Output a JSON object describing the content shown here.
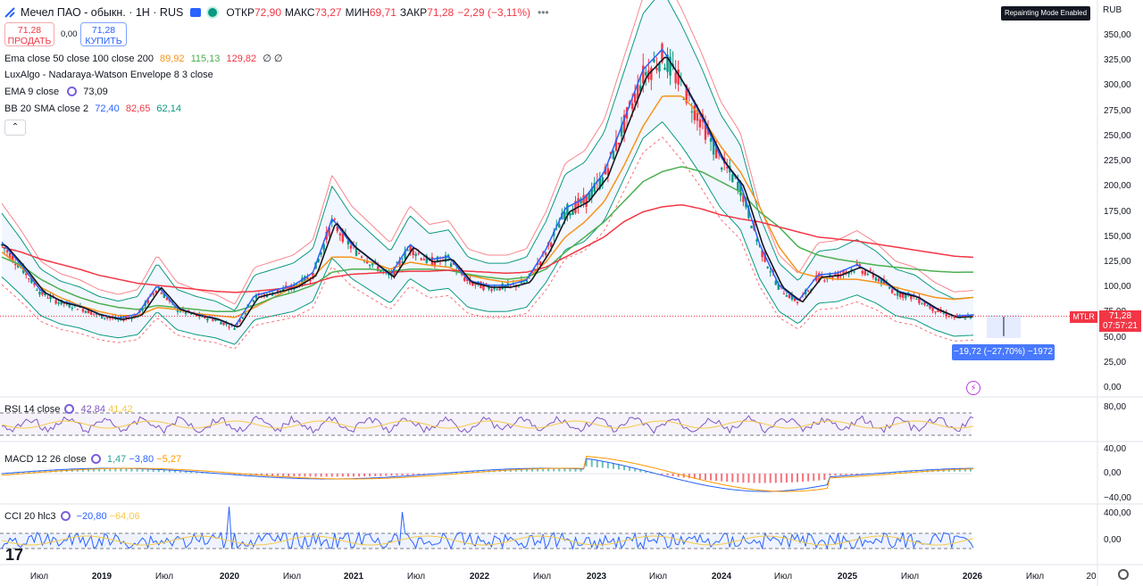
{
  "header": {
    "symbol": "Мечел ПАО - обыкн. · 1H · RUS",
    "open_label": "ОТКР",
    "open": "72,90",
    "high_label": "МАКС",
    "high": "73,27",
    "low_label": "МИН",
    "low": "69,71",
    "close_label": "ЗАКР",
    "close": "71,28",
    "change": "−2,29 (−3,11%)"
  },
  "trade": {
    "sell_price": "71,28",
    "sell_label": "ПРОДАТЬ",
    "spread": "0,00",
    "buy_price": "71,28",
    "buy_label": "КУПИТЬ"
  },
  "indicators": {
    "ema": {
      "name": "Ema close 50 close 100 close 200",
      "v1": "89,92",
      "v2": "115,13",
      "v3": "129,82",
      "v4": "∅ ∅",
      "c1": "#f7931a",
      "c2": "#4caf50",
      "c3": "#f23645"
    },
    "lux": {
      "name": "LuxAlgo - Nadaraya-Watson Envelope 8 3 close"
    },
    "ema9": {
      "name": "EMA 9 close",
      "v": "73,09"
    },
    "bb": {
      "name": "BB 20 SMA close 2",
      "v1": "72,40",
      "v2": "82,65",
      "v3": "62,14"
    }
  },
  "top_right": {
    "badge": "Repainting Mode Enabled",
    "currency": "RUB"
  },
  "price_axis": [
    "350,00",
    "325,00",
    "300,00",
    "275,00",
    "250,00",
    "225,00",
    "200,00",
    "175,00",
    "150,00",
    "125,00",
    "100,00",
    "75,00",
    "50,00",
    "25,00",
    "0,00"
  ],
  "last_price": {
    "ticker": "MTLR",
    "price": "71,28",
    "countdown": "07:57:21"
  },
  "measure": {
    "label": "−19,72 (−27,70%) −1972"
  },
  "rsi": {
    "name": "RSI 14 close",
    "v1": "42,84",
    "v2": "41,42",
    "axis": "80,00"
  },
  "macd": {
    "name": "MACD 12 26 close",
    "v1": "1,47",
    "v2": "−3,80",
    "v3": "−5,27",
    "axis": [
      "40,00",
      "0,00",
      "−40,00"
    ]
  },
  "cci": {
    "name": "CCI 20 hlc3",
    "v1": "−20,80",
    "v2": "−64,06",
    "axis": [
      "400,00",
      "0,00"
    ]
  },
  "time_axis": [
    {
      "t": "Июл",
      "year": false
    },
    {
      "t": "2019",
      "year": true
    },
    {
      "t": "Июл",
      "year": false
    },
    {
      "t": "2020",
      "year": true
    },
    {
      "t": "Июл",
      "year": false
    },
    {
      "t": "2021",
      "year": true
    },
    {
      "t": "Июл",
      "year": false
    },
    {
      "t": "2022",
      "year": true
    },
    {
      "t": "Июл",
      "year": false
    },
    {
      "t": "2023",
      "year": true
    },
    {
      "t": "Июл",
      "year": false
    },
    {
      "t": "2024",
      "year": true
    },
    {
      "t": "Июл",
      "year": false
    },
    {
      "t": "2025",
      "year": true
    },
    {
      "t": "Июл",
      "year": false
    },
    {
      "t": "2026",
      "year": true
    },
    {
      "t": "Июл",
      "year": false
    },
    {
      "t": "20",
      "year": false
    }
  ],
  "colors": {
    "up": "#089981",
    "down": "#f23645",
    "ema50": "#f7931a",
    "ema100": "#4caf50",
    "ema200": "#f23645",
    "ema9": "#131722",
    "bb_basis": "#2962ff",
    "bb_band": "#089981",
    "nw_upper": "#f23645",
    "nw_lower": "#f23645",
    "rsi": "#7e57c2",
    "macd": "#2962ff",
    "signal": "#ff9800",
    "cci": "#2962ff"
  },
  "chart_data": {
    "type": "line",
    "x": [
      "2018-05",
      "2018-07",
      "2018-10",
      "2019-01",
      "2019-04",
      "2019-07",
      "2019-10",
      "2020-01",
      "2020-03",
      "2020-04",
      "2020-07",
      "2020-10",
      "2021-01",
      "2021-04",
      "2021-06",
      "2021-07",
      "2021-09",
      "2021-10",
      "2021-12",
      "2022-01",
      "2022-03",
      "2022-04",
      "2022-06",
      "2022-07",
      "2022-09",
      "2022-10",
      "2022-12",
      "2023-01",
      "2023-03",
      "2023-04",
      "2023-06",
      "2023-07",
      "2023-09",
      "2023-10",
      "2023-12",
      "2024-01",
      "2024-03",
      "2024-04",
      "2024-06",
      "2024-07",
      "2024-09",
      "2024-10",
      "2024-12",
      "2025-01",
      "2025-03",
      "2025-04",
      "2025-06",
      "2025-07",
      "2025-09",
      "2025-10",
      "2025-12"
    ],
    "series": [
      {
        "name": "Мечел ПАО - обыкн.",
        "values": [
          142,
          120,
          95,
          85,
          80,
          72,
          68,
          72,
          100,
          78,
          72,
          68,
          60,
          90,
          95,
          100,
          112,
          165,
          140,
          125,
          110,
          140,
          125,
          128,
          105,
          100,
          100,
          105,
          135,
          175,
          185,
          210,
          260,
          310,
          330,
          300,
          265,
          225,
          200,
          140,
          100,
          85,
          110,
          112,
          120,
          110,
          95,
          90,
          78,
          70,
          71.28
        ]
      },
      {
        "name": "Ema close 50",
        "values": [
          135,
          120,
          100,
          90,
          82,
          76,
          72,
          72,
          80,
          78,
          74,
          72,
          70,
          80,
          90,
          100,
          110,
          130,
          130,
          125,
          118,
          125,
          122,
          120,
          112,
          108,
          105,
          108,
          125,
          150,
          165,
          185,
          220,
          260,
          290,
          290,
          270,
          240,
          215,
          180,
          140,
          115,
          110,
          108,
          108,
          105,
          100,
          95,
          90,
          88,
          89.92
        ]
      },
      {
        "name": "Ema close 100",
        "values": [
          130,
          122,
          108,
          98,
          90,
          84,
          80,
          78,
          82,
          80,
          78,
          76,
          76,
          82,
          90,
          95,
          102,
          115,
          118,
          118,
          116,
          118,
          118,
          117,
          113,
          110,
          108,
          110,
          118,
          135,
          150,
          165,
          185,
          205,
          215,
          220,
          215,
          205,
          195,
          175,
          160,
          140,
          132,
          128,
          125,
          122,
          120,
          118,
          116,
          115,
          115.13
        ]
      },
      {
        "name": "Ema close 200",
        "values": [
          140,
          135,
          128,
          123,
          118,
          112,
          108,
          104,
          102,
          100,
          98,
          96,
          95,
          96,
          98,
          100,
          104,
          110,
          113,
          114,
          115,
          116,
          116,
          117,
          116,
          115,
          114,
          115,
          120,
          130,
          140,
          150,
          165,
          175,
          180,
          182,
          178,
          172,
          168,
          165,
          160,
          155,
          150,
          148,
          146,
          143,
          140,
          137,
          134,
          131,
          129.82
        ]
      }
    ],
    "ylim": [
      0,
      360
    ],
    "y_ticks": [
      0,
      25,
      50,
      75,
      100,
      125,
      150,
      175,
      200,
      225,
      250,
      275,
      300,
      325,
      350
    ]
  }
}
